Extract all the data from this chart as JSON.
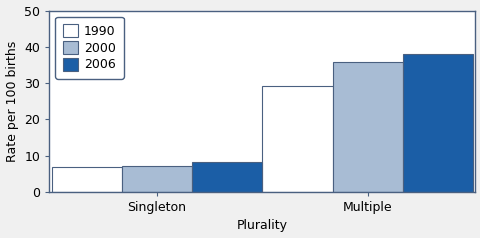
{
  "categories": [
    "Singleton",
    "Multiple"
  ],
  "years": [
    "1990",
    "2000",
    "2006"
  ],
  "values": {
    "Singleton": [
      6.8,
      7.2,
      8.1
    ],
    "Multiple": [
      29.3,
      35.7,
      38.1
    ]
  },
  "bar_colors": [
    "#ffffff",
    "#a8bcd4",
    "#1b5ea6"
  ],
  "bar_edge_color": "#4a6080",
  "xlabel": "Plurality",
  "ylabel": "Rate per 100 births",
  "ylim": [
    0,
    50
  ],
  "yticks": [
    0,
    10,
    20,
    30,
    40,
    50
  ],
  "bar_width": 0.28,
  "group_centers": [
    0.28,
    1.12
  ],
  "background_color": "#f0f0f0",
  "plot_bg_color": "#ffffff",
  "axis_fontsize": 9,
  "legend_fontsize": 9,
  "spine_color": "#4a6080"
}
